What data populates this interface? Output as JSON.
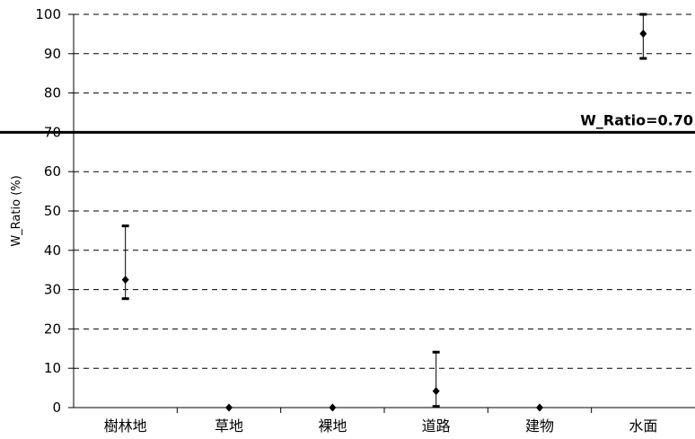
{
  "chart_data": {
    "type": "scatter",
    "ylabel": "W_Ratio (%)",
    "xlabel": "",
    "ylim": [
      0,
      100
    ],
    "yticks": [
      0,
      10,
      20,
      30,
      40,
      50,
      60,
      70,
      80,
      90,
      100
    ],
    "grid": "horizontal-dashed",
    "categories": [
      "樹林地",
      "草地",
      "裸地",
      "道路",
      "建物",
      "水面"
    ],
    "values": [
      32.5,
      0,
      0,
      4.2,
      0,
      95.1
    ],
    "error_low": [
      27.7,
      0,
      0,
      0.3,
      0,
      88.8
    ],
    "error_high": [
      46.2,
      0,
      0,
      14.1,
      0,
      100
    ],
    "reference_line": {
      "value": 70,
      "label": "W_Ratio=0.70"
    }
  }
}
